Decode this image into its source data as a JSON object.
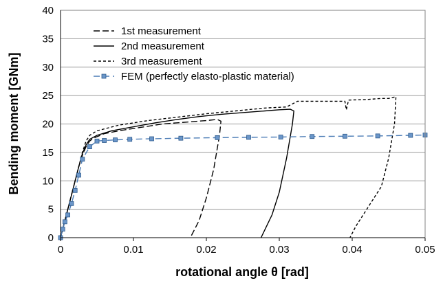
{
  "chart_data": {
    "type": "line",
    "xlabel": "rotational angle θ [rad]",
    "ylabel": "Bending moment [GNm]",
    "xlim": [
      0,
      0.05
    ],
    "ylim": [
      0,
      40
    ],
    "x_ticks": [
      "0",
      "0.01",
      "0.02",
      "0.03",
      "0.04",
      "0.05"
    ],
    "y_ticks": [
      "0",
      "5",
      "10",
      "15",
      "20",
      "25",
      "30",
      "35",
      "40"
    ],
    "grid": "horizontal",
    "legend_position": "top-left",
    "series": [
      {
        "name": "1st measurement",
        "style": "long-dash",
        "color": "#000000",
        "x": [
          0,
          0.0005,
          0.001,
          0.0015,
          0.002,
          0.0025,
          0.003,
          0.0035,
          0.004,
          0.0045,
          0.006,
          0.008,
          0.01,
          0.012,
          0.014,
          0.016,
          0.018,
          0.02,
          0.0215,
          0.022,
          0.0218,
          0.021,
          0.02,
          0.019,
          0.0178
        ],
        "y": [
          0,
          2.5,
          5,
          7.5,
          10,
          12.5,
          14.5,
          16,
          17,
          17.5,
          18.3,
          18.8,
          19.2,
          19.6,
          20,
          20.2,
          20.4,
          20.6,
          20.8,
          20.5,
          18,
          12,
          7,
          3,
          0
        ]
      },
      {
        "name": "2nd measurement",
        "style": "solid",
        "color": "#000000",
        "x": [
          0,
          0.0005,
          0.001,
          0.0015,
          0.002,
          0.0025,
          0.003,
          0.0035,
          0.004,
          0.005,
          0.007,
          0.01,
          0.013,
          0.016,
          0.019,
          0.022,
          0.025,
          0.028,
          0.03,
          0.0315,
          0.032,
          0.0318,
          0.031,
          0.03,
          0.029,
          0.0275
        ],
        "y": [
          0,
          2.5,
          5,
          7.5,
          10,
          12.5,
          14.8,
          16.3,
          17.3,
          18,
          18.8,
          19.5,
          20.2,
          20.8,
          21.3,
          21.7,
          22,
          22.3,
          22.5,
          22.6,
          22.3,
          20,
          14,
          8,
          4,
          0
        ]
      },
      {
        "name": "3rd measurement",
        "style": "short-dash",
        "color": "#000000",
        "x": [
          0,
          0.0005,
          0.001,
          0.0015,
          0.002,
          0.0025,
          0.003,
          0.0035,
          0.004,
          0.005,
          0.008,
          0.012,
          0.016,
          0.02,
          0.024,
          0.028,
          0.031,
          0.0325,
          0.036,
          0.039,
          0.0392,
          0.0395,
          0.042,
          0.044,
          0.045,
          0.046,
          0.0458,
          0.045,
          0.044,
          0.042,
          0.0405,
          0.0397
        ],
        "y": [
          0,
          2.5,
          5,
          7.5,
          10,
          12.5,
          15,
          17,
          18,
          18.8,
          19.8,
          20.6,
          21.2,
          21.8,
          22.3,
          22.8,
          23,
          24,
          24,
          24,
          22.5,
          24.2,
          24.3,
          24.5,
          24.5,
          24.8,
          20,
          14,
          9,
          5,
          2,
          0
        ]
      },
      {
        "name": "FEM (perfectly elasto-plastic material)",
        "style": "dash-with-square-markers",
        "color": "#4a7bb5",
        "x": [
          0,
          0.0003,
          0.0006,
          0.001,
          0.0015,
          0.002,
          0.0025,
          0.003,
          0.004,
          0.005,
          0.006,
          0.0075,
          0.0095,
          0.0125,
          0.0165,
          0.0215,
          0.0258,
          0.0302,
          0.0345,
          0.039,
          0.0435,
          0.048,
          0.05
        ],
        "y": [
          0,
          1.5,
          2.8,
          4,
          6,
          8.3,
          11,
          13.8,
          16,
          17,
          17.1,
          17.2,
          17.3,
          17.4,
          17.5,
          17.6,
          17.65,
          17.7,
          17.8,
          17.85,
          17.9,
          18,
          18.05
        ]
      }
    ]
  }
}
